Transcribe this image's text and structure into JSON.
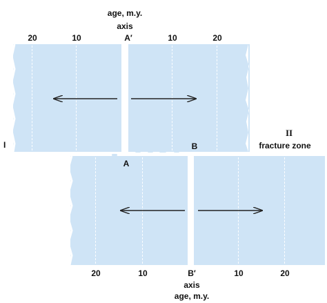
{
  "labels": {
    "age_top": "age, m.y.",
    "axis_top": "axis",
    "a_prime": "A′",
    "a": "A",
    "b": "B",
    "b_prime": "B′",
    "axis_bottom": "axis",
    "age_bottom": "age, m.y.",
    "zone_one": "I",
    "zone_two": "II",
    "fracture_zone": "fracture zone"
  },
  "ticks": {
    "upper_left_20": "20",
    "upper_left_10": "10",
    "upper_right_10": "10",
    "upper_right_20": "20",
    "lower_left_20": "20",
    "lower_left_10": "10",
    "lower_right_10": "10",
    "lower_right_20": "20"
  },
  "colors": {
    "plate": "#cfe4f6",
    "isochron": "#ffffff",
    "arrow": "#222222",
    "text": "#111111"
  }
}
